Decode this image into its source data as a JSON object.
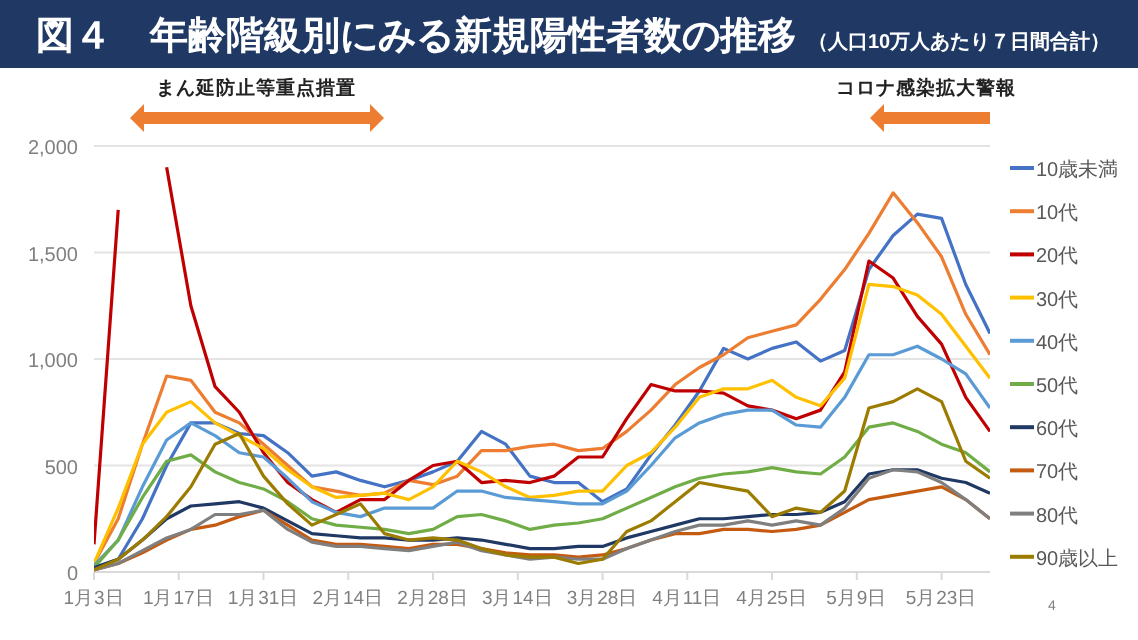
{
  "chart_data": {
    "type": "line",
    "title": "図４　年齢階級別にみる新規陽性者数の推移",
    "subtitle": "（人口10万人あたり７日間合計）",
    "x": [
      "--01-03",
      "--01-07",
      "--01-11",
      "--01-15",
      "--01-19",
      "--01-23",
      "--01-27",
      "--01-31",
      "--02-04",
      "--02-08",
      "--02-12",
      "--02-16",
      "--02-20",
      "--02-24",
      "--02-28",
      "--03-04",
      "--03-08",
      "--03-12",
      "--03-16",
      "--03-20",
      "--03-24",
      "--03-28",
      "--04-01",
      "--04-05",
      "--04-09",
      "--04-13",
      "--04-17",
      "--04-21",
      "--04-25",
      "--04-29",
      "--05-03",
      "--05-07",
      "--05-11",
      "--05-15",
      "--05-19",
      "--05-23",
      "--05-27",
      "--05-31"
    ],
    "xlim": [
      "--01-03",
      "--05-31"
    ],
    "xticks": [
      {
        "value": "--01-03",
        "label": "1月3日"
      },
      {
        "value": "--01-17",
        "label": "1月17日"
      },
      {
        "value": "--01-31",
        "label": "1月31日"
      },
      {
        "value": "--02-14",
        "label": "2月14日"
      },
      {
        "value": "--02-28",
        "label": "2月28日"
      },
      {
        "value": "--03-14",
        "label": "3月14日"
      },
      {
        "value": "--03-28",
        "label": "3月28日"
      },
      {
        "value": "--04-11",
        "label": "4月11日"
      },
      {
        "value": "--04-25",
        "label": "4月25日"
      },
      {
        "value": "--05-09",
        "label": "5月9日"
      },
      {
        "value": "--05-23",
        "label": "5月23日"
      }
    ],
    "ylim": [
      0,
      2000
    ],
    "yticks": [
      0,
      500,
      {
        "value": 1000,
        "label": "1,000"
      },
      {
        "value": 1500,
        "label": "1,500"
      },
      {
        "value": 2000,
        "label": "2,000"
      }
    ],
    "grid": "y",
    "legend": "right",
    "series": [
      {
        "name": "10歳未満",
        "color": "#4472c4",
        "values": [
          20,
          60,
          250,
          500,
          700,
          700,
          650,
          640,
          560,
          450,
          470,
          430,
          400,
          430,
          470,
          520,
          660,
          600,
          450,
          420,
          420,
          330,
          390,
          550,
          690,
          850,
          1050,
          1000,
          1050,
          1080,
          990,
          1040,
          1420,
          1580,
          1680,
          1660,
          1350,
          1120
        ]
      },
      {
        "name": "10代",
        "color": "#ed7d31",
        "values": [
          40,
          250,
          600,
          920,
          900,
          750,
          700,
          600,
          500,
          400,
          380,
          360,
          370,
          430,
          410,
          450,
          570,
          570,
          590,
          600,
          570,
          580,
          660,
          760,
          880,
          960,
          1020,
          1100,
          1130,
          1160,
          1280,
          1420,
          1590,
          1780,
          1640,
          1480,
          1210,
          1020
        ]
      },
      {
        "name": "20代",
        "color": "#c00000",
        "values": [
          130,
          1700,
          null,
          1900,
          1250,
          870,
          750,
          560,
          420,
          340,
          280,
          340,
          340,
          430,
          500,
          520,
          420,
          430,
          420,
          450,
          540,
          540,
          720,
          880,
          850,
          850,
          840,
          780,
          760,
          720,
          760,
          940,
          1460,
          1380,
          1200,
          1070,
          820,
          660
        ]
      },
      {
        "name": "30代",
        "color": "#ffc000",
        "values": [
          40,
          300,
          600,
          750,
          800,
          700,
          640,
          580,
          480,
          400,
          350,
          360,
          370,
          340,
          400,
          520,
          470,
          400,
          350,
          360,
          380,
          380,
          500,
          560,
          680,
          820,
          860,
          860,
          900,
          820,
          780,
          910,
          1350,
          1340,
          1300,
          1210,
          1060,
          910
        ]
      },
      {
        "name": "40代",
        "color": "#5b9bd5",
        "values": [
          30,
          150,
          400,
          620,
          700,
          640,
          560,
          540,
          440,
          330,
          280,
          260,
          300,
          300,
          300,
          380,
          380,
          350,
          340,
          330,
          320,
          320,
          380,
          500,
          630,
          700,
          740,
          760,
          760,
          690,
          680,
          820,
          1020,
          1020,
          1060,
          1000,
          930,
          770
        ]
      },
      {
        "name": "50代",
        "color": "#70ad47",
        "values": [
          20,
          150,
          350,
          520,
          550,
          470,
          420,
          390,
          330,
          250,
          220,
          210,
          200,
          180,
          200,
          260,
          270,
          240,
          200,
          220,
          230,
          250,
          300,
          350,
          400,
          440,
          460,
          470,
          490,
          470,
          460,
          540,
          680,
          700,
          660,
          600,
          560,
          470
        ]
      },
      {
        "name": "60代",
        "color": "#203864",
        "values": [
          20,
          60,
          150,
          250,
          310,
          320,
          330,
          300,
          240,
          180,
          170,
          160,
          160,
          150,
          150,
          160,
          150,
          130,
          110,
          110,
          120,
          120,
          160,
          190,
          220,
          250,
          250,
          260,
          270,
          270,
          280,
          330,
          460,
          480,
          480,
          440,
          420,
          370
        ]
      },
      {
        "name": "70代",
        "color": "#c55a11",
        "values": [
          10,
          40,
          90,
          150,
          200,
          220,
          260,
          290,
          220,
          150,
          130,
          130,
          120,
          110,
          130,
          130,
          110,
          90,
          80,
          80,
          70,
          80,
          110,
          150,
          180,
          180,
          200,
          200,
          190,
          200,
          220,
          280,
          340,
          360,
          380,
          400,
          340,
          250
        ]
      },
      {
        "name": "80代",
        "color": "#7f7f7f",
        "values": [
          10,
          40,
          100,
          160,
          200,
          270,
          270,
          290,
          200,
          140,
          120,
          120,
          110,
          100,
          120,
          140,
          100,
          80,
          60,
          70,
          60,
          60,
          110,
          150,
          190,
          220,
          220,
          240,
          220,
          240,
          220,
          300,
          440,
          480,
          470,
          420,
          340,
          250
        ]
      },
      {
        "name": "90歳以上",
        "color": "#9c7c00",
        "values": [
          10,
          60,
          150,
          260,
          400,
          600,
          650,
          450,
          320,
          220,
          270,
          320,
          180,
          150,
          160,
          150,
          110,
          80,
          70,
          70,
          40,
          60,
          190,
          240,
          330,
          420,
          400,
          380,
          260,
          300,
          280,
          380,
          770,
          800,
          860,
          800,
          520,
          440
        ]
      }
    ],
    "annotations": [
      "まん延防止等重点措置",
      "コロナ感染拡大警報",
      "4"
    ]
  }
}
